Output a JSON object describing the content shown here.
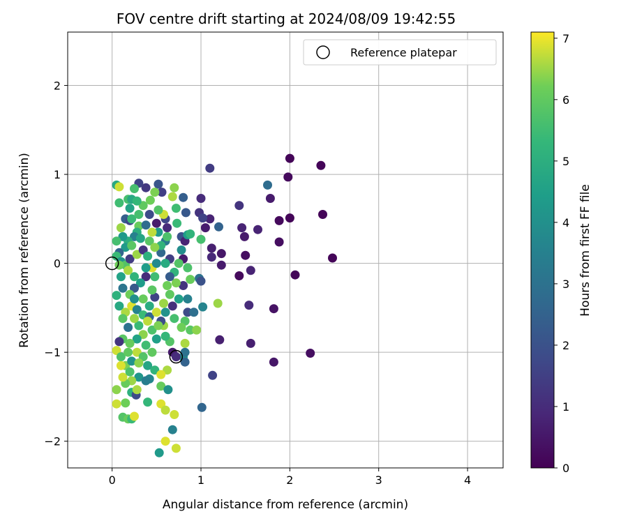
{
  "chart_data": {
    "type": "scatter",
    "title": "FOV centre drift starting at 2024/08/09 19:42:55",
    "xlabel": "Angular distance from reference (arcmin)",
    "ylabel": "Rotation from reference (arcmin)",
    "xlim": [
      -0.5,
      4.4
    ],
    "ylim": [
      -2.3,
      2.6
    ],
    "xticks": [
      0,
      1,
      2,
      3,
      4
    ],
    "yticks": [
      -2,
      -1,
      0,
      1,
      2
    ],
    "grid": true,
    "legend": {
      "placement": "top-right",
      "entries": [
        {
          "label": "Reference platepar",
          "marker": "open-circle"
        }
      ]
    },
    "colorbar": {
      "label": "Hours from first FF file",
      "range": [
        0,
        7.1
      ],
      "ticks": [
        0,
        1,
        2,
        3,
        4,
        5,
        6,
        7
      ],
      "colormap": "viridis"
    },
    "reference_points": [
      [
        0,
        0
      ],
      [
        0.72,
        -1.05
      ]
    ],
    "points": [
      [
        2.0,
        1.18,
        0.1
      ],
      [
        2.35,
        1.1,
        0.1
      ],
      [
        1.98,
        0.97,
        0.2
      ],
      [
        2.37,
        0.55,
        0.1
      ],
      [
        2.0,
        0.51,
        0.1
      ],
      [
        1.88,
        0.48,
        0.2
      ],
      [
        1.88,
        0.24,
        0.3
      ],
      [
        2.48,
        0.06,
        0.1
      ],
      [
        2.06,
        -0.13,
        0.1
      ],
      [
        1.82,
        -0.51,
        0.4
      ],
      [
        1.82,
        -1.11,
        0.5
      ],
      [
        2.23,
        -1.01,
        0.3
      ],
      [
        1.78,
        0.73,
        0.6
      ],
      [
        1.75,
        0.88,
        2.8
      ],
      [
        1.64,
        0.38,
        0.8
      ],
      [
        1.56,
        -0.08,
        0.8
      ],
      [
        1.5,
        0.09,
        0.3
      ],
      [
        1.43,
        0.65,
        1.2
      ],
      [
        1.46,
        0.4,
        0.8
      ],
      [
        1.49,
        0.3,
        0.6
      ],
      [
        1.43,
        -0.14,
        0.2
      ],
      [
        1.54,
        -0.47,
        1.0
      ],
      [
        1.56,
        -0.9,
        0.7
      ],
      [
        1.1,
        1.07,
        1.4
      ],
      [
        1.0,
        0.73,
        1.0
      ],
      [
        1.1,
        0.5,
        0.8
      ],
      [
        1.05,
        0.4,
        0.6
      ],
      [
        1.12,
        0.17,
        0.7
      ],
      [
        1.12,
        0.07,
        0.9
      ],
      [
        1.2,
        0.41,
        2.5
      ],
      [
        1.23,
        0.11,
        0.5
      ],
      [
        1.23,
        -0.02,
        0.6
      ],
      [
        1.21,
        -0.86,
        0.7
      ],
      [
        1.13,
        -1.26,
        1.6
      ],
      [
        1.01,
        -1.62,
        2.6
      ],
      [
        0.98,
        0.57,
        1.2
      ],
      [
        1.02,
        0.51,
        1.6
      ],
      [
        1.0,
        0.27,
        5.6
      ],
      [
        0.98,
        -0.17,
        3.0
      ],
      [
        1.0,
        -0.2,
        2.0
      ],
      [
        1.02,
        -0.49,
        3.6
      ],
      [
        1.19,
        -0.45,
        6.5
      ],
      [
        0.8,
        0.74,
        2.4
      ],
      [
        0.83,
        0.57,
        2.2
      ],
      [
        0.78,
        0.3,
        2.0
      ],
      [
        0.82,
        0.25,
        0.8
      ],
      [
        0.85,
        0.32,
        4.4
      ],
      [
        0.88,
        0.33,
        5.2
      ],
      [
        0.8,
        0.05,
        0.6
      ],
      [
        0.85,
        -0.05,
        5.7
      ],
      [
        0.8,
        -0.25,
        1.2
      ],
      [
        0.85,
        -0.4,
        3.5
      ],
      [
        0.85,
        -0.55,
        1.8
      ],
      [
        0.82,
        -0.65,
        5.8
      ],
      [
        0.78,
        -0.72,
        6.2
      ],
      [
        0.88,
        -0.75,
        5.9
      ],
      [
        0.82,
        -0.9,
        6.6
      ],
      [
        0.8,
        -1.05,
        4.0
      ],
      [
        0.82,
        -1.11,
        2.5
      ],
      [
        0.82,
        -1.0,
        3.0
      ],
      [
        0.7,
        0.85,
        6.4
      ],
      [
        0.6,
        0.5,
        1.7
      ],
      [
        0.62,
        0.4,
        1.0
      ],
      [
        0.52,
        0.89,
        2.1
      ],
      [
        0.56,
        0.8,
        1.5
      ],
      [
        0.48,
        0.8,
        6.3
      ],
      [
        0.38,
        0.85,
        1.3
      ],
      [
        0.35,
        0.65,
        6.0
      ],
      [
        0.42,
        0.55,
        1.8
      ],
      [
        0.5,
        0.45,
        0.6
      ],
      [
        0.52,
        0.35,
        4.3
      ],
      [
        0.58,
        0.55,
        6.8
      ],
      [
        0.6,
        0.25,
        3.3
      ],
      [
        0.55,
        0.12,
        2.7
      ],
      [
        0.65,
        0.05,
        1.5
      ],
      [
        0.7,
        -0.1,
        5.2
      ],
      [
        0.62,
        -0.25,
        6.2
      ],
      [
        0.68,
        -0.48,
        1.1
      ],
      [
        0.6,
        -0.55,
        4.1
      ],
      [
        0.58,
        -0.7,
        6.5
      ],
      [
        0.65,
        -0.88,
        5.8
      ],
      [
        0.68,
        -1.0,
        0.6
      ],
      [
        0.72,
        -1.05,
        1.0
      ],
      [
        0.62,
        -1.2,
        6.6
      ],
      [
        0.55,
        -1.38,
        6.1
      ],
      [
        0.55,
        -1.58,
        6.9
      ],
      [
        0.6,
        -1.65,
        6.7
      ],
      [
        0.7,
        -1.7,
        6.8
      ],
      [
        0.68,
        -1.87,
        3.5
      ],
      [
        0.6,
        -2.0,
        6.9
      ],
      [
        0.72,
        -2.08,
        6.8
      ],
      [
        0.53,
        -2.13,
        4.3
      ],
      [
        0.63,
        -1.42,
        4.0
      ],
      [
        0.3,
        0.9,
        1.6
      ],
      [
        0.25,
        0.84,
        5.6
      ],
      [
        0.18,
        0.72,
        5.6
      ],
      [
        0.22,
        0.72,
        4.8
      ],
      [
        0.28,
        0.7,
        5.3
      ],
      [
        0.08,
        0.68,
        5.5
      ],
      [
        0.05,
        0.88,
        4.8
      ],
      [
        0.08,
        0.86,
        6.8
      ],
      [
        0.15,
        0.5,
        2.4
      ],
      [
        0.2,
        0.48,
        1.7
      ],
      [
        0.22,
        0.5,
        5.4
      ],
      [
        0.3,
        0.42,
        6.1
      ],
      [
        0.38,
        0.43,
        2.8
      ],
      [
        0.45,
        0.35,
        6.7
      ],
      [
        0.28,
        0.35,
        5.0
      ],
      [
        0.25,
        0.3,
        3.5
      ],
      [
        0.18,
        0.25,
        5.0
      ],
      [
        0.15,
        0.18,
        4.3
      ],
      [
        0.08,
        0.12,
        2.6
      ],
      [
        0.05,
        0.08,
        5.4
      ],
      [
        0.1,
        0.02,
        4.1
      ],
      [
        0.15,
        -0.02,
        5.8
      ],
      [
        0.2,
        0.05,
        1.4
      ],
      [
        0.28,
        0.1,
        6.5
      ],
      [
        0.35,
        0.15,
        1.2
      ],
      [
        0.4,
        0.08,
        5.1
      ],
      [
        0.45,
        -0.05,
        6.9
      ],
      [
        0.5,
        0.0,
        3.8
      ],
      [
        0.48,
        -0.15,
        5.5
      ],
      [
        0.38,
        -0.15,
        1.0
      ],
      [
        0.32,
        -0.22,
        4.4
      ],
      [
        0.25,
        -0.28,
        2.2
      ],
      [
        0.2,
        -0.35,
        6.2
      ],
      [
        0.12,
        -0.28,
        3.1
      ],
      [
        0.05,
        -0.36,
        5.1
      ],
      [
        0.08,
        -0.48,
        4.8
      ],
      [
        0.15,
        -0.55,
        6.6
      ],
      [
        0.22,
        -0.48,
        6.9
      ],
      [
        0.28,
        -0.52,
        3.6
      ],
      [
        0.35,
        -0.58,
        5.4
      ],
      [
        0.42,
        -0.6,
        2.6
      ],
      [
        0.5,
        -0.55,
        6.8
      ],
      [
        0.55,
        -0.65,
        1.9
      ],
      [
        0.45,
        -0.75,
        5.7
      ],
      [
        0.35,
        -0.8,
        6.4
      ],
      [
        0.28,
        -0.85,
        4.6
      ],
      [
        0.2,
        -0.9,
        6.1
      ],
      [
        0.12,
        -0.85,
        5.9
      ],
      [
        0.08,
        -0.88,
        1.2
      ],
      [
        0.05,
        -0.98,
        6.8
      ],
      [
        0.1,
        -1.05,
        5.7
      ],
      [
        0.15,
        -1.15,
        6.3
      ],
      [
        0.22,
        -1.1,
        4.1
      ],
      [
        0.28,
        -1.0,
        6.7
      ],
      [
        0.35,
        -1.05,
        5.8
      ],
      [
        0.4,
        -1.15,
        4.7
      ],
      [
        0.48,
        -1.2,
        5.2
      ],
      [
        0.55,
        -1.25,
        6.9
      ],
      [
        0.42,
        -1.3,
        3.7
      ],
      [
        0.3,
        -1.28,
        4.2
      ],
      [
        0.22,
        -1.32,
        6.5
      ],
      [
        0.15,
        -1.35,
        6.1
      ],
      [
        0.12,
        -1.28,
        6.8
      ],
      [
        0.22,
        -1.45,
        5.1
      ],
      [
        0.27,
        -1.48,
        1.8
      ],
      [
        0.28,
        -1.42,
        6.6
      ],
      [
        0.38,
        -1.32,
        3.4
      ],
      [
        0.4,
        -1.56,
        5.3
      ],
      [
        0.15,
        -1.57,
        6.2
      ],
      [
        0.05,
        -1.42,
        6.4
      ],
      [
        0.05,
        -1.58,
        6.8
      ],
      [
        0.12,
        -1.73,
        5.8
      ],
      [
        0.18,
        -1.75,
        6.1
      ],
      [
        0.22,
        -1.75,
        5.4
      ],
      [
        0.25,
        -1.72,
        6.9
      ],
      [
        0.55,
        0.2,
        5.2
      ],
      [
        0.6,
        0.0,
        4.9
      ],
      [
        0.65,
        -0.35,
        6.0
      ],
      [
        0.7,
        -0.62,
        5.6
      ],
      [
        0.75,
        -0.4,
        4.5
      ],
      [
        0.72,
        -0.22,
        6.3
      ],
      [
        0.75,
        0.0,
        5.8
      ],
      [
        0.78,
        0.15,
        3.9
      ],
      [
        0.35,
        -0.4,
        6.1
      ],
      [
        0.42,
        -0.48,
        4.9
      ],
      [
        0.48,
        -0.38,
        1.6
      ],
      [
        0.3,
        -0.7,
        5.4
      ],
      [
        0.25,
        -0.62,
        6.5
      ],
      [
        0.18,
        -0.72,
        3.0
      ],
      [
        0.12,
        -0.62,
        5.9
      ],
      [
        0.1,
        -0.15,
        4.6
      ],
      [
        0.18,
        -0.08,
        6.6
      ],
      [
        0.25,
        -0.15,
        5.2
      ],
      [
        0.38,
        -0.05,
        4.4
      ],
      [
        0.42,
        0.25,
        5.9
      ],
      [
        0.48,
        0.18,
        6.4
      ],
      [
        0.32,
        0.28,
        4.7
      ],
      [
        0.22,
        0.2,
        5.9
      ],
      [
        0.12,
        0.3,
        4.3
      ],
      [
        0.62,
        0.3,
        5.7
      ],
      [
        0.52,
        0.6,
        5.8
      ],
      [
        0.43,
        0.71,
        6.2
      ],
      [
        0.65,
        -0.15,
        2.3
      ],
      [
        0.58,
        -0.45,
        6.5
      ],
      [
        0.5,
        -0.85,
        4.5
      ],
      [
        0.45,
        -1.0,
        6.0
      ],
      [
        0.38,
        -0.92,
        5.5
      ],
      [
        0.3,
        -1.12,
        6.4
      ],
      [
        0.2,
        -1.22,
        5.7
      ],
      [
        0.68,
        0.75,
        6.6
      ],
      [
        0.72,
        0.62,
        5.5
      ],
      [
        0.3,
        0.55,
        5.6
      ],
      [
        0.2,
        0.62,
        4.6
      ],
      [
        0.1,
        0.4,
        6.5
      ],
      [
        0.05,
        0.25,
        5.6
      ],
      [
        0.08,
        -0.02,
        6.2
      ],
      [
        0.25,
        -0.4,
        4.0
      ],
      [
        0.45,
        -0.3,
        5.9
      ],
      [
        0.52,
        -0.7,
        6.3
      ],
      [
        0.6,
        -0.82,
        5.3
      ],
      [
        0.4,
        -0.65,
        6.7
      ],
      [
        0.18,
        -1.0,
        6.0
      ],
      [
        0.1,
        -1.15,
        6.9
      ],
      [
        0.92,
        -0.55,
        2.9
      ],
      [
        0.88,
        -0.18,
        6.1
      ],
      [
        0.73,
        0.45,
        5.4
      ],
      [
        0.95,
        -0.75,
        6.4
      ]
    ]
  }
}
